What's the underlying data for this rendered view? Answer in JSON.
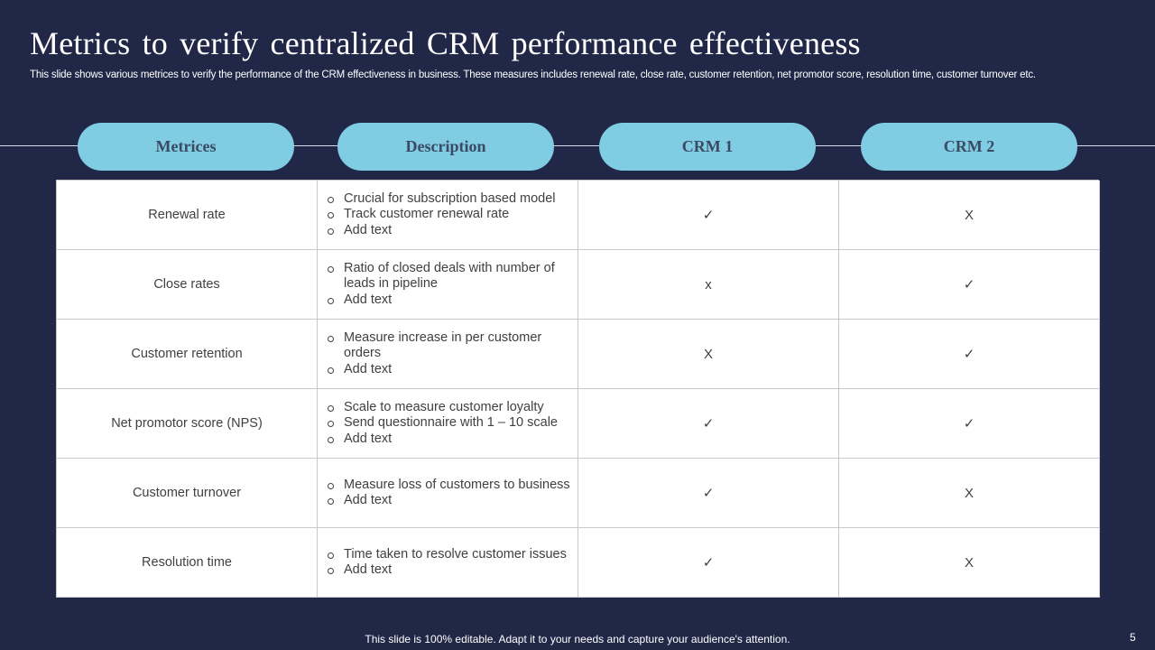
{
  "title": "Metrics to verify centralized CRM performance effectiveness",
  "subtitle": "This slide shows various metrices to verify the performance of the CRM effectiveness in business. These measures includes renewal rate, close rate, customer retention, net promotor score, resolution time, customer turnover etc.",
  "headers": [
    "Metrices",
    "Description",
    "CRM 1",
    "CRM 2"
  ],
  "rows": [
    {
      "metric": "Renewal rate",
      "description": [
        "Crucial for subscription based model",
        "Track customer renewal rate",
        "Add text"
      ],
      "crm1": "✓",
      "crm2": "X"
    },
    {
      "metric": "Close rates",
      "description": [
        "Ratio of closed deals with number of leads in pipeline",
        "Add text"
      ],
      "crm1": "x",
      "crm2": "✓"
    },
    {
      "metric": "Customer retention",
      "description": [
        "Measure increase in per customer orders",
        "Add text"
      ],
      "crm1": "X",
      "crm2": "✓"
    },
    {
      "metric": "Net promotor score (NPS)",
      "description": [
        "Scale to measure customer loyalty",
        "Send questionnaire with 1 – 10 scale",
        "Add text"
      ],
      "crm1": "✓",
      "crm2": "✓"
    },
    {
      "metric": "Customer turnover",
      "description": [
        "Measure loss of customers to business",
        "Add text"
      ],
      "crm1": "✓",
      "crm2": "X"
    },
    {
      "metric": "Resolution time",
      "description": [
        "Time taken to resolve customer issues",
        "Add text"
      ],
      "crm1": "✓",
      "crm2": "X"
    }
  ],
  "footer": "This slide is 100% editable. Adapt it to your needs and capture your audience's attention.",
  "page_number": "5",
  "colors": {
    "background": "#212847",
    "pill": "#80cce3",
    "pill_text": "#3a4a63"
  }
}
